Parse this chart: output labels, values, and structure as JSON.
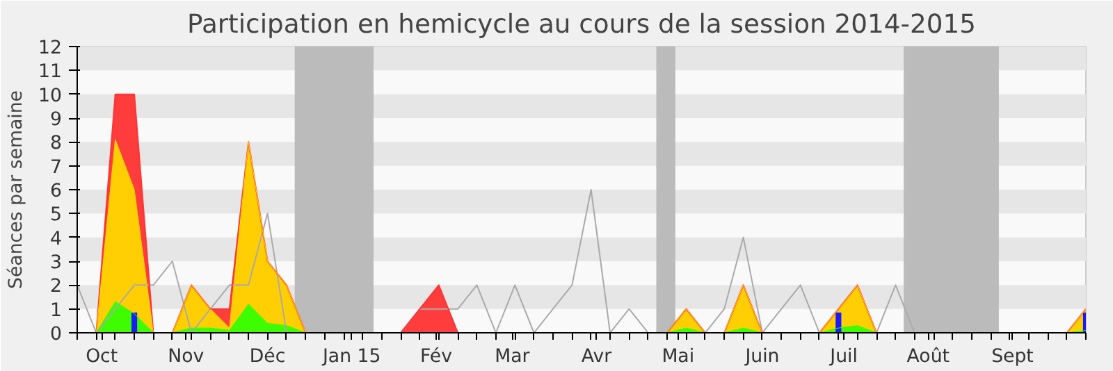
{
  "chart_data": {
    "type": "area",
    "title": "Participation en hemicycle au cours de la session 2014-2015",
    "ylabel": "Séances par semaine",
    "x": [
      "2014-09-22",
      "2014-09-29",
      "2014-10-06",
      "2014-10-13",
      "2014-10-20",
      "2014-10-27",
      "2014-11-03",
      "2014-11-10",
      "2014-11-17",
      "2014-11-24",
      "2014-12-01",
      "2014-12-08",
      "2014-12-15",
      "2014-12-22",
      "2014-12-29",
      "2015-01-05",
      "2015-01-12",
      "2015-01-19",
      "2015-01-26",
      "2015-02-02",
      "2015-02-09",
      "2015-02-16",
      "2015-02-23",
      "2015-03-02",
      "2015-03-09",
      "2015-03-16",
      "2015-03-23",
      "2015-03-30",
      "2015-04-06",
      "2015-04-13",
      "2015-04-20",
      "2015-04-27",
      "2015-05-04",
      "2015-05-11",
      "2015-05-18",
      "2015-05-25",
      "2015-06-01",
      "2015-06-08",
      "2015-06-15",
      "2015-06-22",
      "2015-06-29",
      "2015-07-06",
      "2015-07-13",
      "2015-07-20",
      "2015-07-27",
      "2015-08-03",
      "2015-08-10",
      "2015-08-17",
      "2015-08-24",
      "2015-08-31",
      "2015-09-07",
      "2015-09-14",
      "2015-09-21",
      "2015-09-28"
    ],
    "series": [
      {
        "color": "#ff3333",
        "values": [
          0,
          0,
          10,
          10,
          0,
          0,
          2,
          1,
          1,
          8,
          3,
          2,
          0,
          0,
          0,
          0,
          0,
          0,
          1,
          2,
          0,
          0,
          0,
          0,
          0,
          0,
          0,
          0,
          0,
          0,
          0,
          0,
          1,
          0,
          0,
          2,
          0,
          0,
          0,
          0,
          1,
          2,
          0,
          0,
          0,
          0,
          0,
          0,
          0,
          0,
          0,
          0,
          0,
          1
        ]
      },
      {
        "color": "#ffd700",
        "values": [
          0,
          0,
          8.1,
          6,
          0,
          0,
          2,
          1,
          0.2,
          8,
          3,
          2,
          0,
          0,
          0,
          0,
          0,
          0,
          0,
          0,
          0,
          0,
          0,
          0,
          0,
          0,
          0,
          0,
          0,
          0,
          0,
          0,
          1,
          0,
          0,
          2,
          0,
          0,
          0,
          0,
          1,
          2,
          0,
          0,
          0,
          0,
          0,
          0,
          0,
          0,
          0,
          0,
          0,
          1
        ]
      },
      {
        "color": "#33ff00",
        "values": [
          0,
          0,
          1.3,
          0.8,
          0,
          0,
          0.2,
          0.2,
          0.1,
          1.2,
          0.4,
          0.3,
          0,
          0,
          0,
          0,
          0,
          0,
          0,
          0,
          0,
          0,
          0,
          0,
          0,
          0,
          0,
          0,
          0,
          0,
          0,
          0,
          0.2,
          0,
          0,
          0.2,
          0,
          0,
          0,
          0,
          0.2,
          0.3,
          0,
          0,
          0,
          0,
          0,
          0,
          0,
          0,
          0,
          0,
          0,
          0.1
        ]
      },
      {
        "type": "bar",
        "color": "#1a1aff",
        "values": [
          null,
          null,
          null,
          0.85,
          null,
          null,
          null,
          null,
          null,
          null,
          null,
          null,
          null,
          null,
          null,
          null,
          null,
          null,
          null,
          null,
          null,
          null,
          null,
          null,
          null,
          null,
          null,
          null,
          null,
          null,
          null,
          null,
          null,
          null,
          null,
          null,
          null,
          null,
          null,
          null,
          0.85,
          null,
          null,
          null,
          null,
          null,
          null,
          null,
          null,
          null,
          null,
          null,
          null,
          0.85
        ]
      },
      {
        "type": "line",
        "color": "#aaaaaa",
        "values": [
          2,
          0,
          1,
          2,
          2,
          3,
          0,
          1,
          2,
          2,
          5,
          0,
          0,
          0,
          0,
          0,
          0,
          0,
          1,
          1,
          1,
          2,
          0,
          2,
          0,
          1,
          2,
          6,
          0,
          1,
          0,
          0,
          0,
          0,
          1,
          4,
          0,
          1,
          2,
          0,
          0,
          0,
          0,
          2,
          0,
          0,
          0,
          0,
          0,
          0,
          0,
          0,
          0,
          0
        ]
      }
    ],
    "bands": [
      {
        "axis": "x",
        "from": "2014-12-11",
        "to": "2015-01-09",
        "color": "#bbbbbb"
      },
      {
        "axis": "x",
        "from": "2015-04-23",
        "to": "2015-04-30",
        "color": "#bbbbbb"
      },
      {
        "axis": "x",
        "from": "2015-07-23",
        "to": "2015-08-27",
        "color": "#bbbbbb"
      },
      {
        "axis": "y",
        "from": 1,
        "to": 2,
        "color": "#e6e6e6"
      },
      {
        "axis": "y",
        "from": 3,
        "to": 4,
        "color": "#e6e6e6"
      },
      {
        "axis": "y",
        "from": 5,
        "to": 6,
        "color": "#e6e6e6"
      },
      {
        "axis": "y",
        "from": 7,
        "to": 8,
        "color": "#e6e6e6"
      },
      {
        "axis": "y",
        "from": 9,
        "to": 10,
        "color": "#e6e6e6"
      },
      {
        "axis": "y",
        "from": 11,
        "to": 12,
        "color": "#e6e6e6"
      }
    ],
    "xlim": [
      "2014-09-22",
      "2015-09-28"
    ],
    "xticks": [
      {
        "value": "2014-10-01",
        "label": "Oct"
      },
      {
        "value": "2014-11-01",
        "label": "Nov"
      },
      {
        "value": "2014-12-01",
        "label": "Déc"
      },
      {
        "value": "2015-01-01",
        "label": "Jan 15"
      },
      {
        "value": "2015-02-01",
        "label": "Fév"
      },
      {
        "value": "2015-03-01",
        "label": "Mar"
      },
      {
        "value": "2015-04-01",
        "label": "Avr"
      },
      {
        "value": "2015-05-01",
        "label": "Mai"
      },
      {
        "value": "2015-06-01",
        "label": "Juin"
      },
      {
        "value": "2015-07-01",
        "label": "Juil"
      },
      {
        "value": "2015-08-01",
        "label": "Août"
      },
      {
        "value": "2015-09-01",
        "label": "Sept"
      }
    ],
    "ylim": [
      0,
      12
    ],
    "yticks": [
      0,
      1,
      2,
      3,
      4,
      5,
      6,
      7,
      8,
      9,
      10,
      11,
      12
    ],
    "grid": false
  }
}
